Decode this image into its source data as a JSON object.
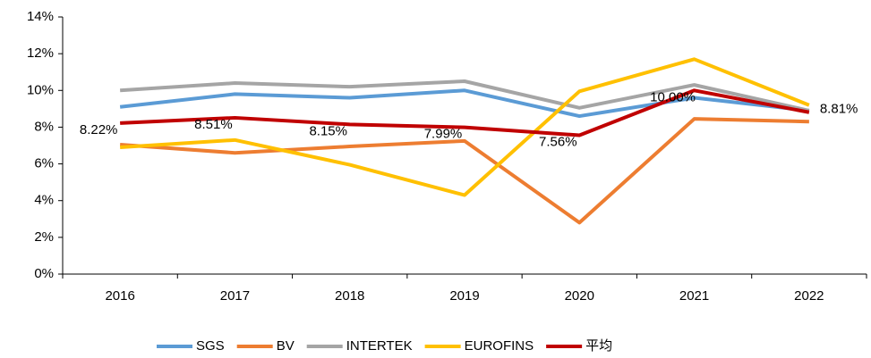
{
  "chart_data": {
    "type": "line",
    "categories": [
      "2016",
      "2017",
      "2018",
      "2019",
      "2020",
      "2021",
      "2022"
    ],
    "series": [
      {
        "name": "SGS",
        "color": "#5b9bd5",
        "values": [
          9.1,
          9.8,
          9.6,
          10.0,
          8.6,
          9.6,
          8.9
        ]
      },
      {
        "name": "BV",
        "color": "#ed7d31",
        "values": [
          7.05,
          6.6,
          6.95,
          7.25,
          2.8,
          8.45,
          8.3
        ]
      },
      {
        "name": "INTERTEK",
        "color": "#a5a5a5",
        "values": [
          10.0,
          10.4,
          10.2,
          10.5,
          9.05,
          10.3,
          8.9
        ]
      },
      {
        "name": "EUROFINS",
        "color": "#ffc000",
        "values": [
          6.9,
          7.3,
          5.95,
          4.3,
          9.95,
          11.7,
          9.2
        ]
      },
      {
        "name": "平均",
        "color": "#c00000",
        "values": [
          8.22,
          8.51,
          8.15,
          7.99,
          7.56,
          10.0,
          8.81
        ],
        "value_labels": [
          "8.22%",
          "8.51%",
          "8.15%",
          "7.99%",
          "7.56%",
          "10.00%",
          "8.81%"
        ]
      }
    ],
    "ylim": [
      0,
      14
    ],
    "yticks": [
      {
        "value": 0,
        "label": "0%"
      },
      {
        "value": 2,
        "label": "2%"
      },
      {
        "value": 4,
        "label": "4%"
      },
      {
        "value": 6,
        "label": "6%"
      },
      {
        "value": 8,
        "label": "8%"
      },
      {
        "value": 10,
        "label": "10%"
      },
      {
        "value": 12,
        "label": "12%"
      },
      {
        "value": 14,
        "label": "14%"
      }
    ],
    "legend": "bottom"
  }
}
